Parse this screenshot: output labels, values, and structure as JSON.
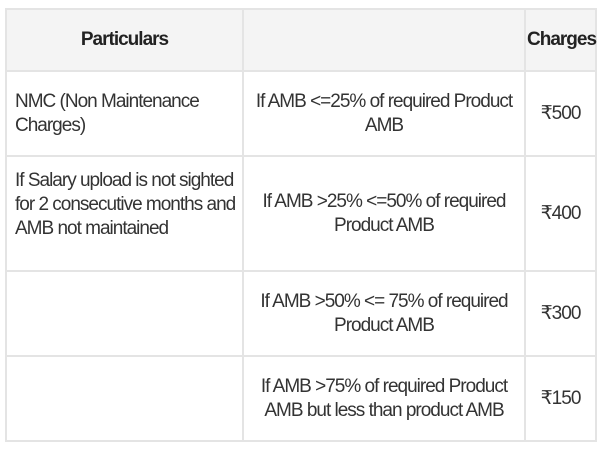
{
  "table": {
    "headers": [
      "Particulars",
      "",
      "Charges"
    ],
    "rows": [
      {
        "particulars": "NMC (Non Maintenance Charges)",
        "condition": "If AMB <=25% of required Product AMB",
        "charge": "₹500"
      },
      {
        "particulars": "If Salary upload is not sighted for 2 consecutive months and AMB not maintained",
        "condition": "If AMB >25% <=50% of required Product AMB",
        "charge": "₹400"
      },
      {
        "particulars": "",
        "condition": "If AMB >50% <= 75% of required Product AMB",
        "charge": "₹300"
      },
      {
        "particulars": "",
        "condition": "If AMB >75% of required Product AMB but less than product AMB",
        "charge": "₹150"
      }
    ]
  }
}
